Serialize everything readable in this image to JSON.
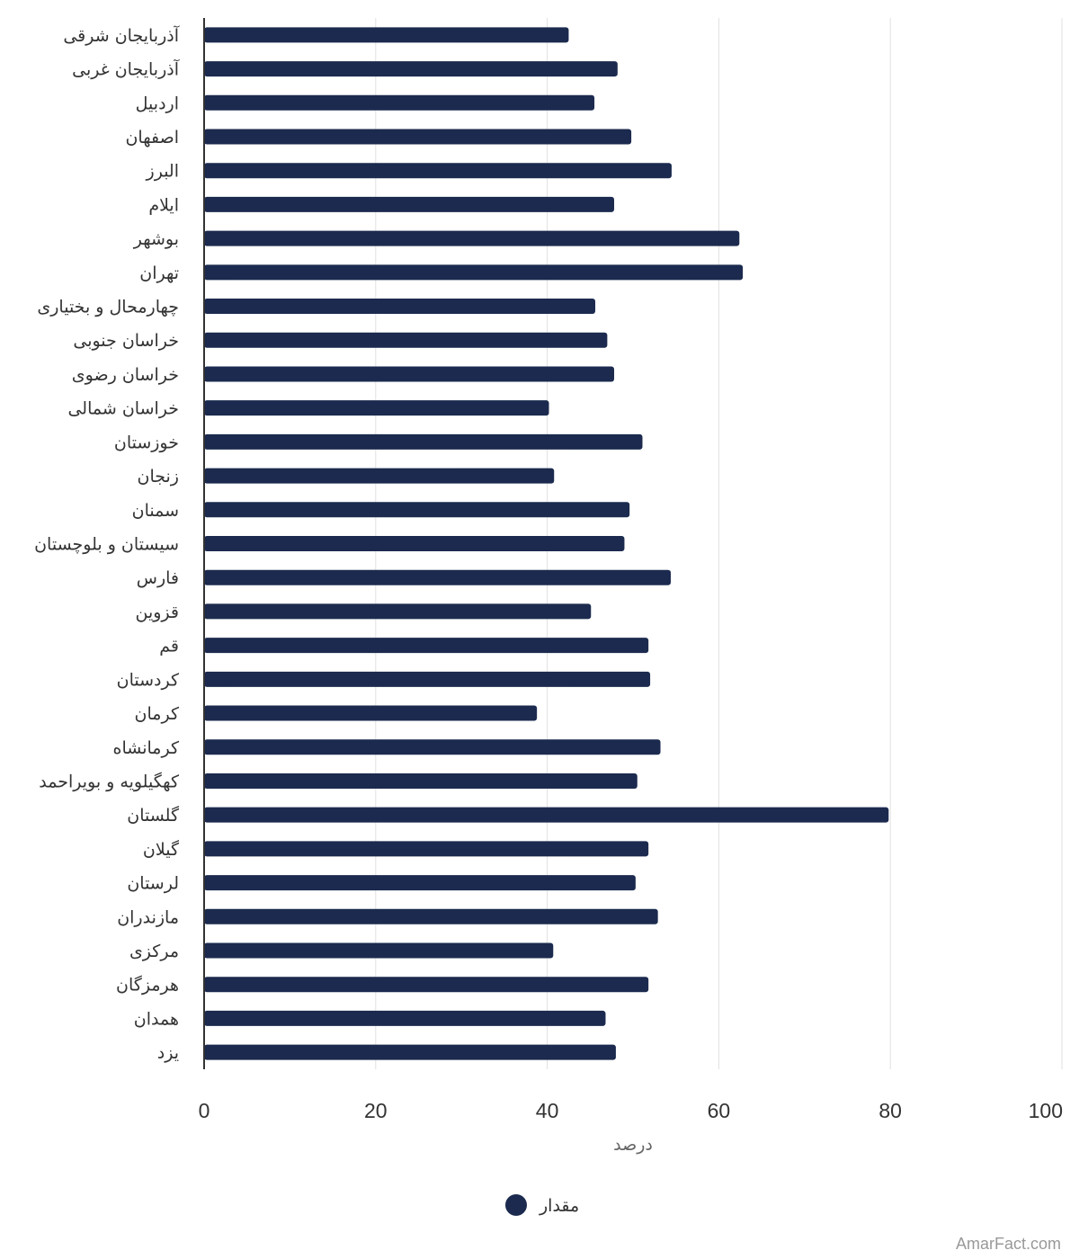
{
  "chart_data": {
    "type": "bar",
    "orientation": "horizontal",
    "categories": [
      "آذربایجان شرقی",
      "آذربایجان غربی",
      "اردبیل",
      "اصفهان",
      "البرز",
      "ایلام",
      "بوشهر",
      "تهران",
      "چهارمحال و بختیاری",
      "خراسان جنوبی",
      "خراسان رضوی",
      "خراسان شمالی",
      "خوزستان",
      "زنجان",
      "سمنان",
      "سیستان و بلوچستان",
      "فارس",
      "قزوین",
      "قم",
      "کردستان",
      "کرمان",
      "کرمانشاه",
      "کهگیلویه و بویراحمد",
      "گلستان",
      "گیلان",
      "لرستان",
      "مازندران",
      "مرکزی",
      "هرمزگان",
      "همدان",
      "یزد"
    ],
    "series": [
      {
        "name": "مقدار",
        "color": "#1b2a4e",
        "values": [
          42.5,
          48.2,
          45.5,
          49.8,
          54.5,
          47.8,
          62.4,
          62.8,
          45.6,
          47,
          47.8,
          40.2,
          51.1,
          40.8,
          49.6,
          49,
          54.4,
          45.1,
          51.8,
          52,
          38.8,
          53.2,
          50.5,
          79.8,
          51.8,
          50.3,
          52.9,
          40.7,
          51.8,
          46.8,
          48
        ]
      }
    ],
    "xlim": [
      0,
      100
    ],
    "x_ticks": [
      0,
      20,
      40,
      60,
      80,
      100
    ],
    "xlabel": "درصد",
    "grid": true,
    "legend_position": "bottom-center"
  },
  "credit": "AmarFact.com"
}
